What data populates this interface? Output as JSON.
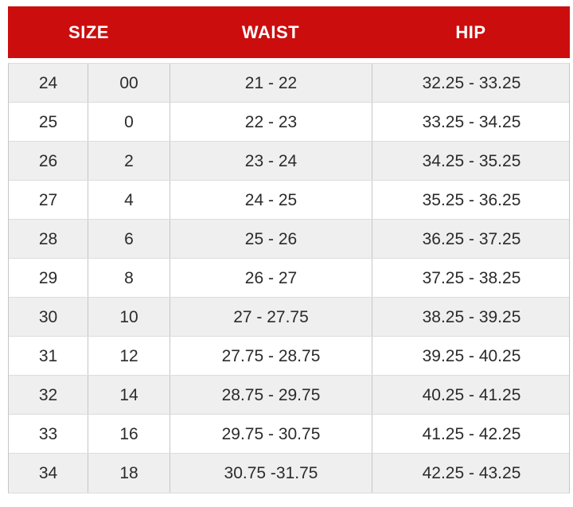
{
  "chart_data": {
    "type": "table",
    "title": "Size chart with waist and hip measurements",
    "headers": [
      "SIZE",
      "WAIST",
      "HIP"
    ],
    "header_spans": [
      2,
      1,
      1
    ],
    "row_keys": [
      "size",
      "size_alt",
      "waist",
      "hip"
    ],
    "rows": [
      {
        "size": "24",
        "size_alt": "00",
        "waist": "21 - 22",
        "hip": "32.25 - 33.25"
      },
      {
        "size": "25",
        "size_alt": "0",
        "waist": "22 - 23",
        "hip": "33.25 - 34.25"
      },
      {
        "size": "26",
        "size_alt": "2",
        "waist": "23 - 24",
        "hip": "34.25 - 35.25"
      },
      {
        "size": "27",
        "size_alt": "4",
        "waist": "24 - 25",
        "hip": "35.25 - 36.25"
      },
      {
        "size": "28",
        "size_alt": "6",
        "waist": "25 - 26",
        "hip": "36.25 - 37.25"
      },
      {
        "size": "29",
        "size_alt": "8",
        "waist": "26 - 27",
        "hip": "37.25 - 38.25"
      },
      {
        "size": "30",
        "size_alt": "10",
        "waist": "27 - 27.75",
        "hip": "38.25 - 39.25"
      },
      {
        "size": "31",
        "size_alt": "12",
        "waist": "27.75 - 28.75",
        "hip": "39.25 - 40.25"
      },
      {
        "size": "32",
        "size_alt": "14",
        "waist": "28.75 - 29.75",
        "hip": "40.25 - 41.25"
      },
      {
        "size": "33",
        "size_alt": "16",
        "waist": "29.75 - 30.75",
        "hip": "41.25 - 42.25"
      },
      {
        "size": "34",
        "size_alt": "18",
        "waist": "30.75 -31.75",
        "hip": "42.25 - 43.25"
      }
    ],
    "layout": {
      "striped": true,
      "first_row_shaded": true,
      "header_position": "top"
    }
  },
  "colors": {
    "header_bg": "#cc0d0d",
    "header_text": "#ffffff",
    "alt_row_bg": "#efefef",
    "v_border": "#c6c6c6",
    "h_border": "#dddddd",
    "text": "#2b2b2b"
  }
}
